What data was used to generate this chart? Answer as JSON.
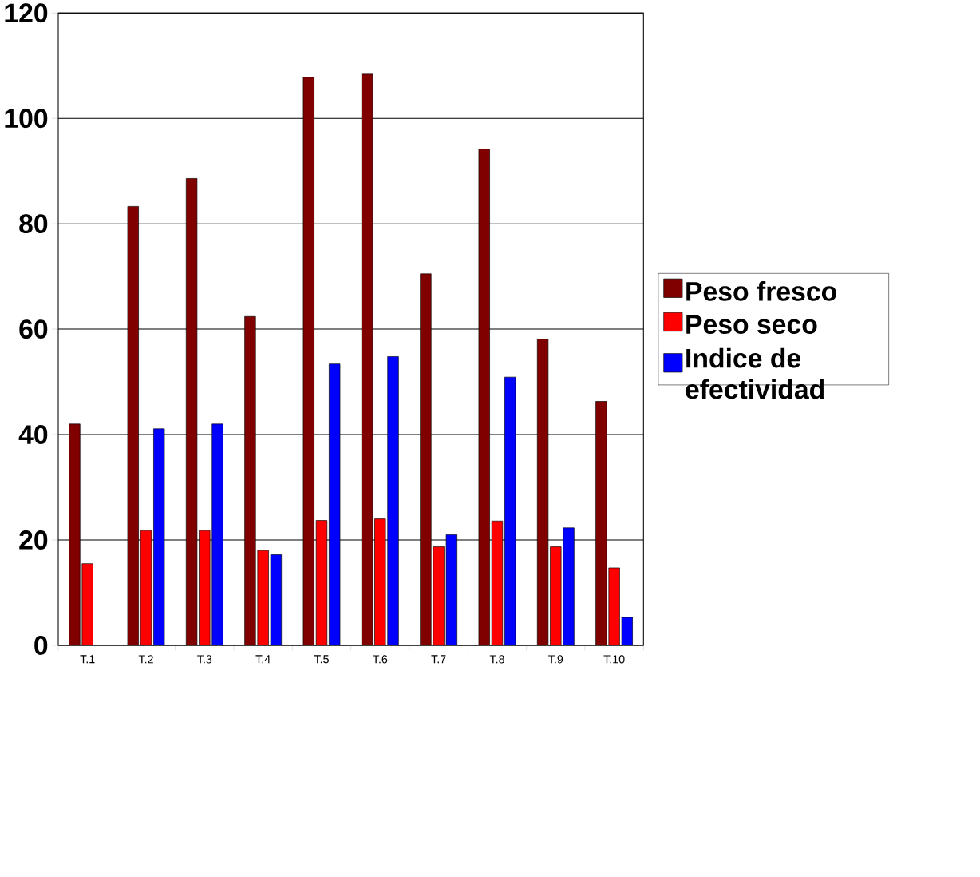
{
  "chart_data": {
    "type": "bar",
    "categories": [
      "T.1",
      "T.2",
      "T.3",
      "T.4",
      "T.5",
      "T.6",
      "T.7",
      "T.8",
      "T.9",
      "T.10"
    ],
    "series": [
      {
        "name": "Peso fresco",
        "color": "#800000",
        "values": [
          42,
          83.3,
          88.6,
          62.4,
          107.8,
          108.4,
          70.5,
          94.2,
          58.1,
          46.3
        ]
      },
      {
        "name": "Peso seco",
        "color": "#ff0000",
        "values": [
          15.5,
          21.8,
          21.8,
          18,
          23.7,
          24,
          18.7,
          23.6,
          18.7,
          14.7
        ]
      },
      {
        "name": "Indice de efectividad",
        "color": "#0000ff",
        "values": [
          null,
          41.1,
          42,
          17.2,
          53.4,
          54.8,
          21,
          50.9,
          22.3,
          5.3
        ]
      }
    ],
    "ylim": [
      0,
      120
    ],
    "yticks": [
      0,
      20,
      40,
      60,
      80,
      100,
      120
    ],
    "grid": "y",
    "legend": "right"
  }
}
